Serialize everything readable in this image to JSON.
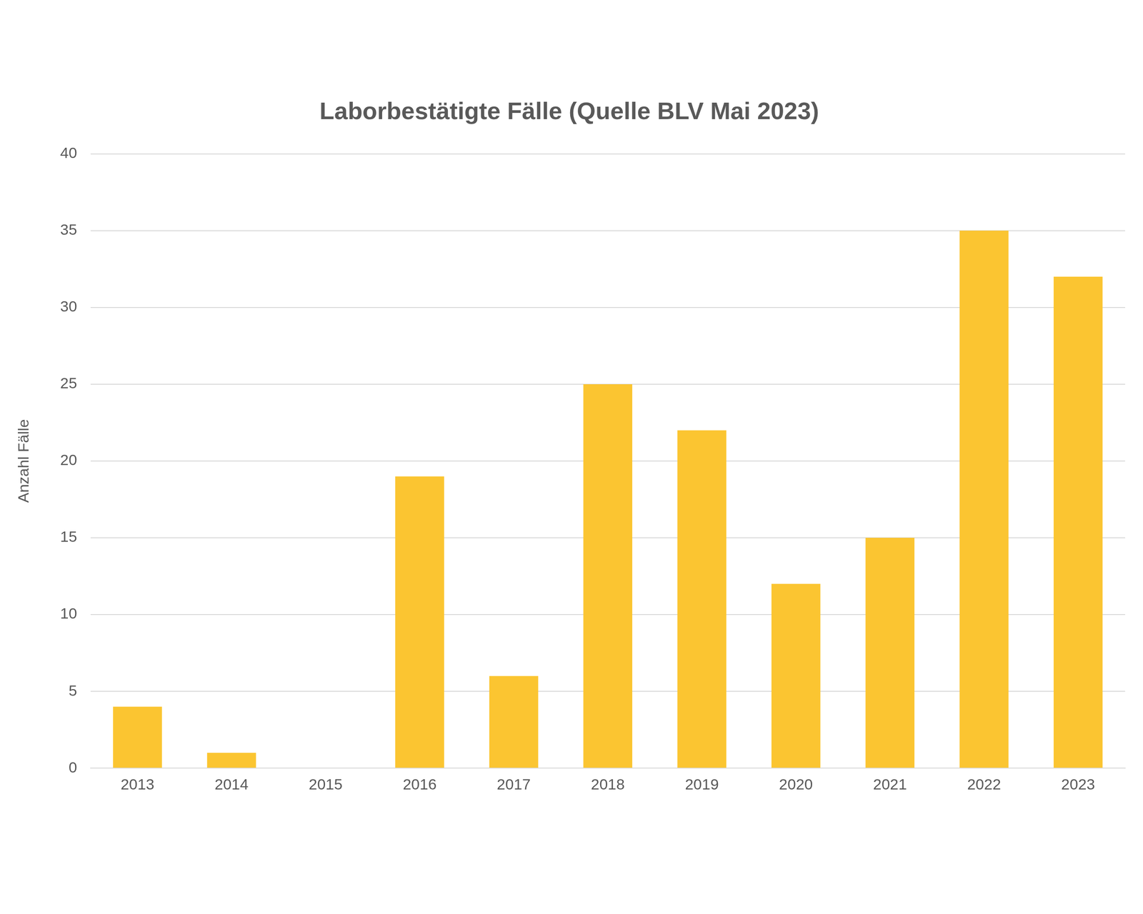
{
  "chart_data": {
    "type": "bar",
    "title": "Laborbestätigte Fälle (Quelle BLV Mai 2023)",
    "y_label": "Anzahl Fälle",
    "categories": [
      "2013",
      "2014",
      "2015",
      "2016",
      "2017",
      "2018",
      "2019",
      "2020",
      "2021",
      "2022",
      "2023"
    ],
    "values": [
      4,
      1,
      0,
      19,
      6,
      25,
      22,
      12,
      15,
      35,
      32
    ],
    "color": "#fbc531",
    "ylim": [
      0,
      40
    ],
    "yticks": [
      0,
      5,
      10,
      15,
      20,
      25,
      30,
      35,
      40
    ],
    "grid": true
  }
}
